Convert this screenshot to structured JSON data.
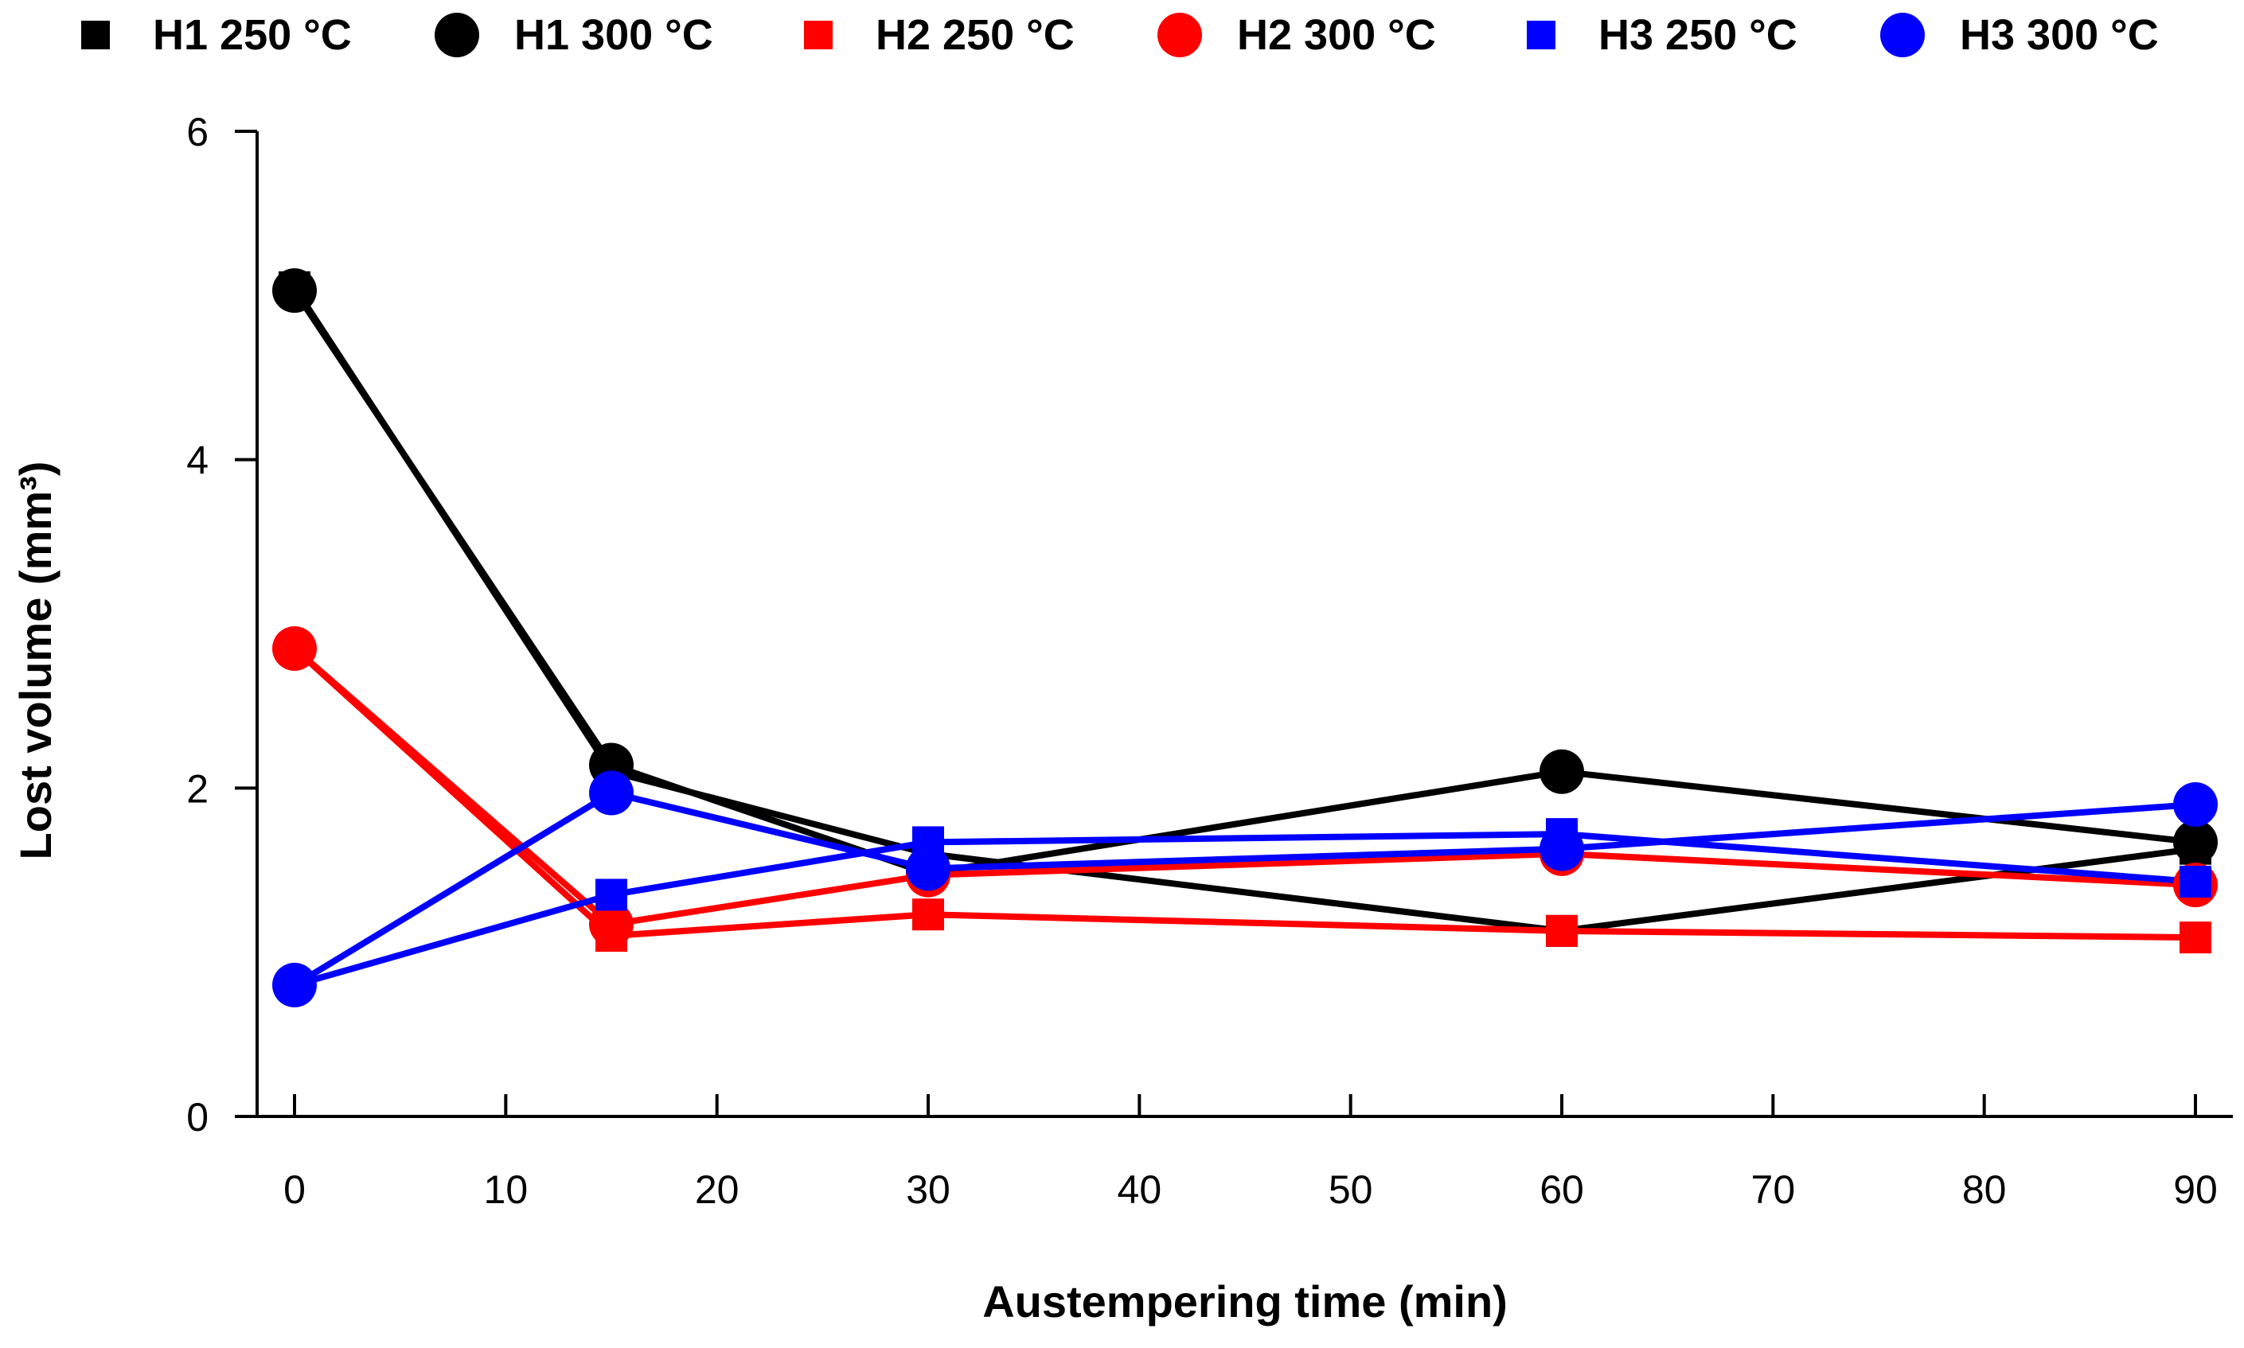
{
  "chart_data": {
    "type": "line",
    "title": "",
    "xlabel": "Austempering time (min)",
    "ylabel": "Lost volume (mm³)",
    "xlim": [
      0,
      90
    ],
    "ylim": [
      0,
      6
    ],
    "xticks": [
      0,
      10,
      20,
      30,
      40,
      50,
      60,
      70,
      80,
      90
    ],
    "yticks": [
      0,
      2,
      4,
      6
    ],
    "grid": false,
    "legend_position": "top",
    "x": [
      0,
      15,
      30,
      60,
      90
    ],
    "series": [
      {
        "name": "H1 250 °C",
        "marker": "square",
        "color": "#000000",
        "values": [
          5.05,
          2.1,
          1.6,
          1.13,
          1.63
        ]
      },
      {
        "name": "H1 300 °C",
        "marker": "circle",
        "color": "#000000",
        "values": [
          5.03,
          2.14,
          1.48,
          2.1,
          1.67
        ]
      },
      {
        "name": "H2 250 °C",
        "marker": "square",
        "color": "#ff0000",
        "values": [
          2.85,
          1.1,
          1.23,
          1.13,
          1.09
        ]
      },
      {
        "name": "H2 300 °C",
        "marker": "circle",
        "color": "#ff0000",
        "values": [
          2.85,
          1.17,
          1.47,
          1.6,
          1.41
        ]
      },
      {
        "name": "H3 250 °C",
        "marker": "square",
        "color": "#0000ff",
        "values": [
          0.8,
          1.35,
          1.67,
          1.72,
          1.43
        ]
      },
      {
        "name": "H3 300 °C",
        "marker": "circle",
        "color": "#0000ff",
        "values": [
          0.8,
          1.97,
          1.51,
          1.63,
          1.9
        ]
      }
    ]
  }
}
